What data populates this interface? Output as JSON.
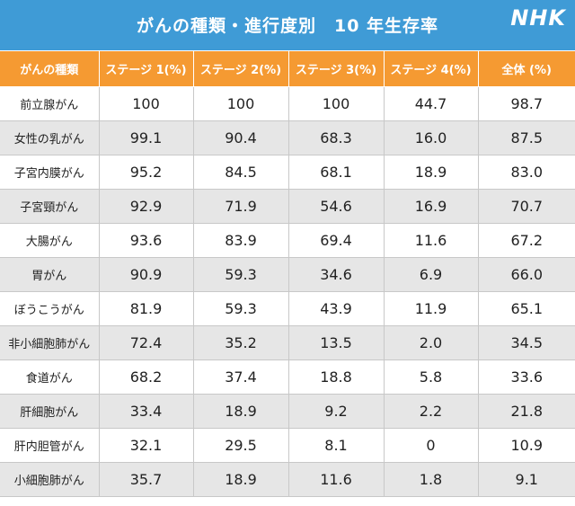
{
  "header": {
    "title": "がんの種類・進行度別　10 年生存率",
    "logo": "NHK"
  },
  "colors": {
    "header_bg": "#3f9bd6",
    "table_header_bg": "#f59a32",
    "stripe": "#e6e6e6"
  },
  "chart_data": {
    "type": "table",
    "title": "がんの種類・進行度別　10 年生存率",
    "columns": [
      "がんの種類",
      "ステージ 1(%)",
      "ステージ 2(%)",
      "ステージ 3(%)",
      "ステージ 4(%)",
      "全体 (%)"
    ],
    "rows": [
      [
        "前立腺がん",
        "100",
        "100",
        "100",
        "44.7",
        "98.7"
      ],
      [
        "女性の乳がん",
        "99.1",
        "90.4",
        "68.3",
        "16.0",
        "87.5"
      ],
      [
        "子宮内膜がん",
        "95.2",
        "84.5",
        "68.1",
        "18.9",
        "83.0"
      ],
      [
        "子宮頸がん",
        "92.9",
        "71.9",
        "54.6",
        "16.9",
        "70.7"
      ],
      [
        "大腸がん",
        "93.6",
        "83.9",
        "69.4",
        "11.6",
        "67.2"
      ],
      [
        "胃がん",
        "90.9",
        "59.3",
        "34.6",
        "6.9",
        "66.0"
      ],
      [
        "ぼうこうがん",
        "81.9",
        "59.3",
        "43.9",
        "11.9",
        "65.1"
      ],
      [
        "非小細胞肺がん",
        "72.4",
        "35.2",
        "13.5",
        "2.0",
        "34.5"
      ],
      [
        "食道がん",
        "68.2",
        "37.4",
        "18.8",
        "5.8",
        "33.6"
      ],
      [
        "肝細胞がん",
        "33.4",
        "18.9",
        "9.2",
        "2.2",
        "21.8"
      ],
      [
        "肝内胆管がん",
        "32.1",
        "29.5",
        "8.1",
        "0",
        "10.9"
      ],
      [
        "小細胞肺がん",
        "35.7",
        "18.9",
        "11.6",
        "1.8",
        "9.1"
      ]
    ]
  }
}
